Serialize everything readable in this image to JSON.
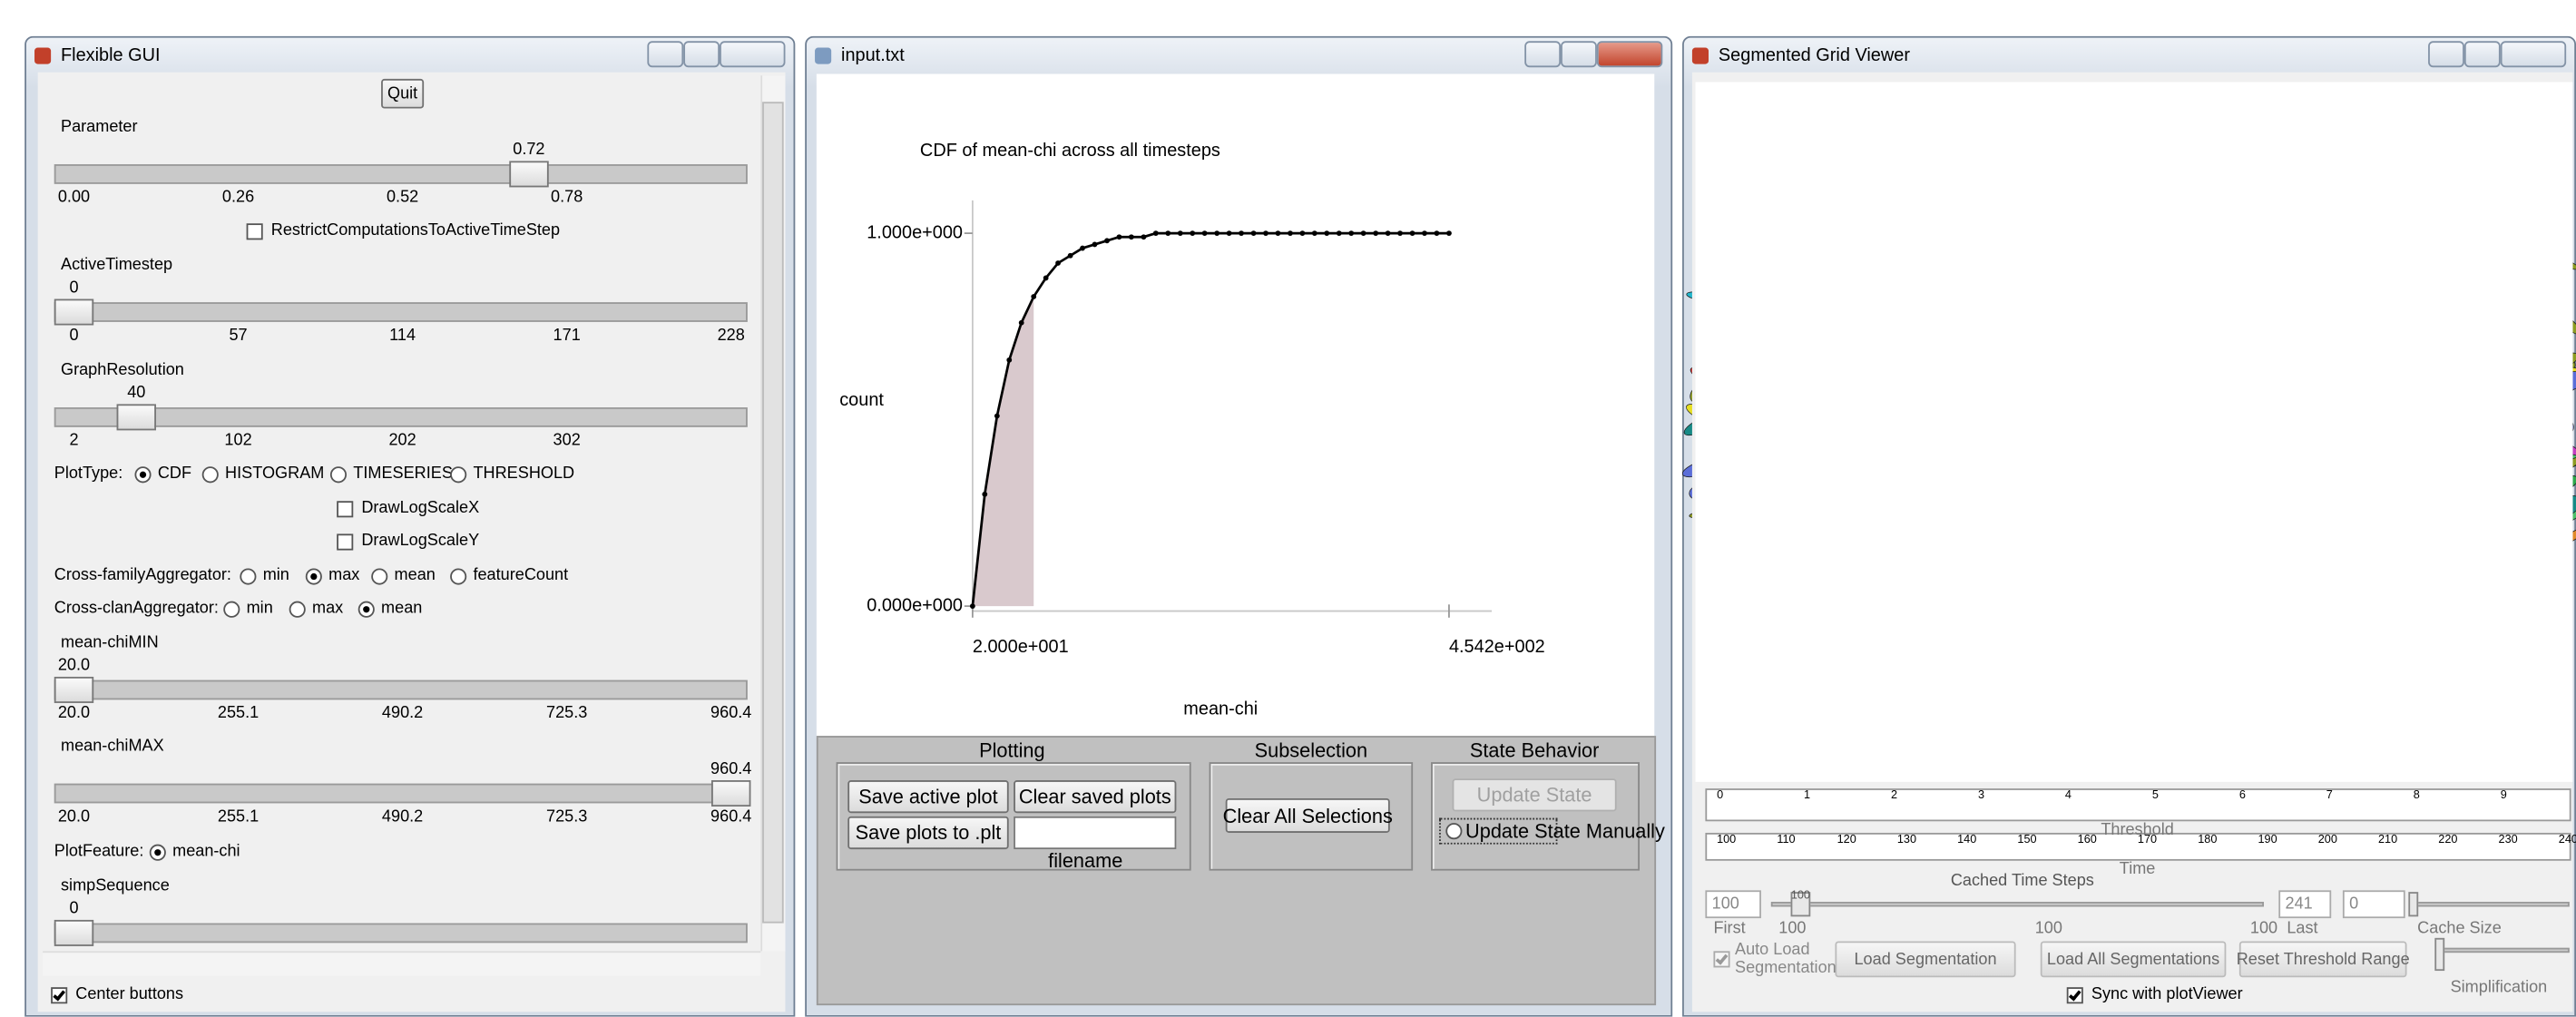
{
  "flexible_gui": {
    "title": "Flexible GUI",
    "quit": "Quit",
    "sliders": [
      {
        "name": "Parameter",
        "value": 0.72,
        "ticks": [
          {
            "value": 0,
            "label": "0.00"
          },
          0.26,
          0.52,
          0.78
        ]
      },
      {
        "name": "ActiveTimestep",
        "value": 0,
        "ticks": [
          0,
          57,
          114,
          171,
          228
        ]
      },
      {
        "name": "GraphResolution",
        "value": 40,
        "ticks": [
          2,
          102,
          202,
          302
        ]
      },
      {
        "name": "mean-chiMIN",
        "value": {
          "value": 20,
          "label": "20.0"
        },
        "ticks": [
          {
            "value": 20,
            "label": "20.0"
          },
          255.1,
          490.2,
          725.3,
          960.4
        ]
      },
      {
        "name": "mean-chiMAX",
        "value": 960.4,
        "ticks": [
          {
            "value": 20,
            "label": "20.0"
          },
          255.1,
          490.2,
          725.3,
          960.4
        ]
      },
      {
        "name": "simpSequence",
        "value": 0
      }
    ],
    "restrict_checkbox": {
      "label": "RestrictComputationsToActiveTimeStep",
      "checked": false
    },
    "plot_type": {
      "label": "PlotType:",
      "options": [
        "CDF",
        "HISTOGRAM",
        "TIMESERIES",
        "THRESHOLD"
      ],
      "selected": 0
    },
    "log_x": {
      "label": "DrawLogScaleX",
      "checked": false
    },
    "log_y": {
      "label": "DrawLogScaleY",
      "checked": false
    },
    "cross_family": {
      "label": "Cross-familyAggregator:",
      "options": [
        "min",
        "max",
        "mean",
        "featureCount"
      ],
      "selected": 1
    },
    "cross_clan": {
      "label": "Cross-clanAggregator:",
      "options": [
        "min",
        "max",
        "mean"
      ],
      "selected": 2
    },
    "plot_feature": {
      "label": "PlotFeature:",
      "options": [
        "mean-chi"
      ],
      "selected": 0
    },
    "center_buttons": {
      "label": "Center buttons",
      "checked": true
    }
  },
  "plot_window": {
    "title": "input.txt",
    "plot": {
      "type": "line",
      "title": "CDF of mean-chi across all timesteps",
      "ylabel": "count",
      "xlabel": "mean-chi",
      "x": [
        20,
        31.1,
        42.3,
        53.4,
        64.5,
        75.7,
        86.8,
        97.9,
        109.1,
        120.2,
        131.3,
        142.5,
        153.6,
        164.7,
        175.9,
        187,
        198.1,
        209.3,
        220.4,
        231.5,
        242.7,
        253.8,
        264.9,
        276.1,
        287.2,
        298.3,
        309.5,
        320.6,
        331.7,
        342.8,
        354,
        365.1,
        376.2,
        387.4,
        398.5,
        409.6,
        420.8,
        431.9,
        443,
        454.2
      ],
      "values": [
        0,
        0.3,
        0.51,
        0.66,
        0.76,
        0.83,
        0.88,
        0.92,
        0.94,
        0.96,
        0.97,
        0.98,
        0.99,
        0.99,
        0.99,
        1,
        1,
        1,
        1,
        1,
        1,
        1,
        1,
        1,
        1,
        1,
        1,
        1,
        1,
        1,
        1,
        1,
        1,
        1,
        1,
        1,
        1,
        1,
        1,
        1
      ],
      "shaded_range": [
        20,
        75.7
      ],
      "xticks": [
        {
          "value": 20,
          "label": "2.000e+001"
        },
        {
          "value": 454.2,
          "label": "4.542e+002"
        }
      ],
      "yticks": [
        {
          "value": 0,
          "label": "0.000e+000"
        },
        {
          "value": 1,
          "label": "1.000e+000"
        }
      ],
      "color": "#000000",
      "shade_color": "#d9c9cd"
    },
    "plotting": {
      "title": "Plotting",
      "save_active": "Save active plot",
      "clear_saved": "Clear saved plots",
      "save_plt": "Save plots to .plt",
      "filename": "filename"
    },
    "subselection": {
      "title": "Subselection",
      "clear_all": "Clear All Selections"
    },
    "state_behavior": {
      "title": "State Behavior",
      "update_state": "Update State",
      "manual": "Update State Manually",
      "manual_selected": false
    }
  },
  "grid_viewer": {
    "title": "Segmented Grid Viewer",
    "threshold_ticks": [
      0,
      1,
      2,
      3,
      4,
      5,
      6,
      7,
      8,
      9
    ],
    "threshold_label": "Threshold",
    "time_ticks": [
      100,
      110,
      120,
      130,
      140,
      150,
      160,
      170,
      180,
      190,
      200,
      210,
      220,
      230,
      240
    ],
    "time_label": "Time",
    "cached_label": "Cached Time Steps",
    "first_entry": 100,
    "first_label": "First",
    "range_value": 100,
    "range_labels": [
      100,
      100,
      100
    ],
    "last_entry": 241,
    "last_label": "Last",
    "cache_entry": 0,
    "cache_label": "Cache Size",
    "auto_load": {
      "label": "Auto Load Segmentation",
      "checked": true
    },
    "load": "Load Segmentation",
    "load_all": "Load All Segmentations",
    "reset": "Reset Threshold Range",
    "simplification": "Simplification",
    "sync": {
      "label": "Sync with plotViewer",
      "checked": true
    }
  }
}
